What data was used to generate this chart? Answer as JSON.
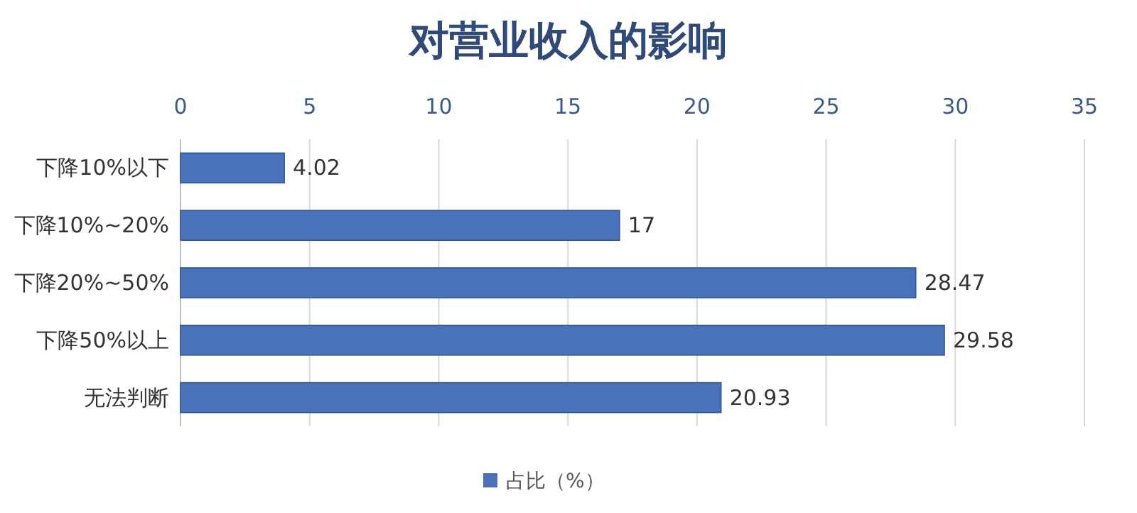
{
  "chart_data": {
    "type": "bar",
    "orientation": "horizontal",
    "title": "对营业收入的影响",
    "categories": [
      "下降10%以下",
      "下降10%~20%",
      "下降20%~50%",
      "下降50%以上",
      "无法判断"
    ],
    "series": [
      {
        "name": "占比（%）",
        "color": "#4a72b8",
        "values": [
          4.02,
          17,
          28.47,
          29.58,
          20.93
        ]
      }
    ],
    "xlim": [
      0,
      35
    ],
    "xticks": [
      0,
      5,
      10,
      15,
      20,
      25,
      30,
      35
    ],
    "grid": "x",
    "legend": "bottom",
    "data_labels": true
  }
}
